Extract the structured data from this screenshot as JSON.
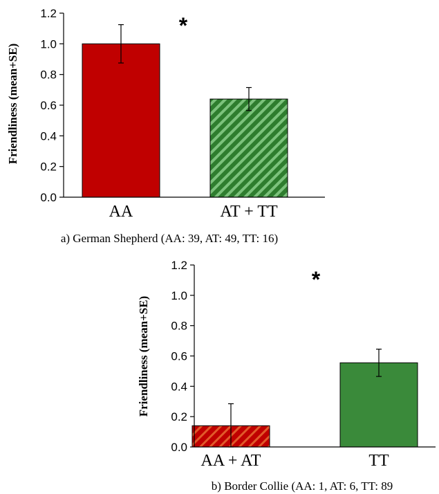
{
  "chart_data": [
    {
      "type": "bar",
      "categories": [
        "AA",
        "AT + TT"
      ],
      "values": [
        1.0,
        0.64
      ],
      "errors": [
        0.125,
        0.075
      ],
      "ylabel": "Friendliness  (mean+SE)",
      "ylim": [
        0,
        1.2
      ],
      "yticks": [
        "0.0",
        "0.2",
        "0.4",
        "0.6",
        "0.8",
        "1.0",
        "1.2"
      ],
      "caption": "a) German Shepherd (AA: 39, AT: 49, TT: 16)",
      "annotation": "*",
      "colors": [
        "#c00000",
        "#2e7d2e"
      ],
      "patterns": [
        "solid",
        "hatch"
      ],
      "grid": false
    },
    {
      "type": "bar",
      "categories": [
        "AA + AT",
        "TT"
      ],
      "values": [
        0.14,
        0.555
      ],
      "errors": [
        0.145,
        0.09
      ],
      "ylabel": "Friendliness  (mean+SE)",
      "ylim": [
        0,
        1.2
      ],
      "yticks": [
        "0.0",
        "0.2",
        "0.4",
        "0.6",
        "0.8",
        "1.0",
        "1.2"
      ],
      "caption": "b) Border Collie (AA: 1, AT: 6, TT: 89",
      "annotation": "*",
      "colors": [
        "#c00000",
        "#3a8a3a"
      ],
      "patterns": [
        "hatch",
        "solid"
      ],
      "grid": false
    }
  ]
}
